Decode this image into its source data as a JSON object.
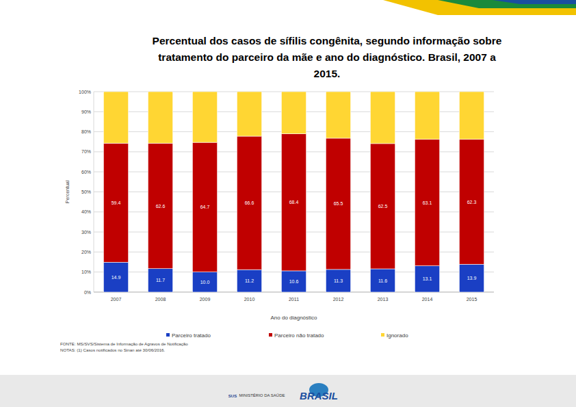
{
  "chart_data": {
    "type": "bar",
    "stacked": true,
    "title": "Percentual dos casos de sífilis congênita, segundo informação sobre tratamento do parceiro da mãe e ano do diagnóstico. Brasil, 2007 a 2015.",
    "x_label": "Ano do diagnóstico",
    "y_label": "Percentual",
    "categories": [
      "2007",
      "2008",
      "2009",
      "2010",
      "2011",
      "2012",
      "2013",
      "2014",
      "2015"
    ],
    "series": [
      {
        "name": "Parceiro tratado",
        "color": "#1a3fc4",
        "data_labels": true,
        "values": [
          14.9,
          11.7,
          10.0,
          11.2,
          10.6,
          11.3,
          11.6,
          13.1,
          13.9
        ],
        "value_labels": [
          "14.9",
          "11.7",
          "10.0",
          "11.2",
          "10.6",
          "11.3",
          "11.6",
          "13.1",
          "13.9"
        ]
      },
      {
        "name": "Parceiro não tratado",
        "color": "#c00000",
        "data_labels": true,
        "values": [
          59.4,
          62.6,
          64.7,
          66.6,
          68.4,
          65.5,
          62.5,
          63.1,
          62.3
        ],
        "value_labels": [
          "59.4",
          "62.6",
          "64.7",
          "66.6",
          "68.4",
          "65.5",
          "62.5",
          "63.1",
          "62.3"
        ]
      },
      {
        "name": "Ignorado",
        "color": "#ffd633",
        "data_labels": false,
        "values": [
          25.7,
          25.7,
          25.3,
          22.2,
          21.0,
          23.2,
          25.9,
          23.8,
          23.8
        ]
      }
    ],
    "ylim": [
      0,
      100
    ],
    "yticks": [
      {
        "value": 0,
        "label": "0%"
      },
      {
        "value": 10,
        "label": "10%"
      },
      {
        "value": 20,
        "label": "20%"
      },
      {
        "value": 30,
        "label": "30%"
      },
      {
        "value": 40,
        "label": "40%"
      },
      {
        "value": 50,
        "label": "50%"
      },
      {
        "value": 60,
        "label": "60%"
      },
      {
        "value": 70,
        "label": "70%"
      },
      {
        "value": 80,
        "label": "80%"
      },
      {
        "value": 90,
        "label": "90%"
      },
      {
        "value": 100,
        "label": "100%"
      }
    ],
    "grid": true,
    "legend": "bottom",
    "annotations": [
      "FONTE: MS/SVS/Sistema de Informação de Agravos de Notificação",
      "NOTAS: (1) Casos notificados no Sinan até 30/06/2016.",
      "SUS",
      "MINISTÉRIO DA SAÚDE",
      "BRASIL"
    ]
  }
}
